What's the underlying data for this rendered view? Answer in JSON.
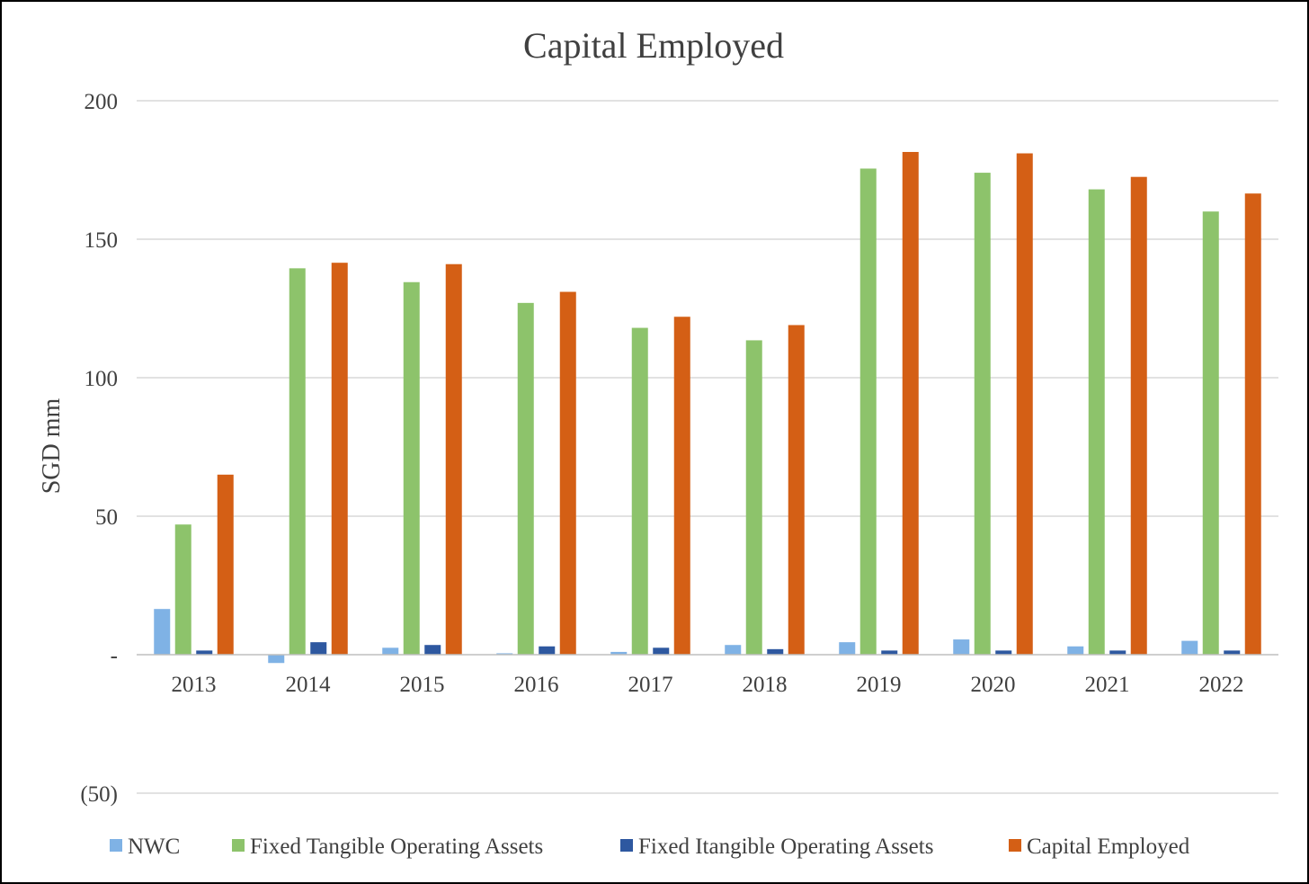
{
  "chart_data": {
    "type": "bar",
    "title": "Capital Employed",
    "xlabel": "",
    "ylabel": "SGD mm",
    "ylim": [
      -50,
      200
    ],
    "yticks": [
      {
        "value": 200,
        "label": "200"
      },
      {
        "value": 150,
        "label": "150"
      },
      {
        "value": 100,
        "label": "100"
      },
      {
        "value": 50,
        "label": "50"
      },
      {
        "value": 0,
        "label": "-"
      },
      {
        "value": -50,
        "label": "(50)"
      }
    ],
    "grid": true,
    "legend_position": "bottom",
    "categories": [
      "2013",
      "2014",
      "2015",
      "2016",
      "2017",
      "2018",
      "2019",
      "2020",
      "2021",
      "2022"
    ],
    "series": [
      {
        "name": "NWC",
        "color": "#7fb2e5",
        "values": [
          16.5,
          -3,
          2.5,
          0.5,
          1,
          3.5,
          4.5,
          5.5,
          3,
          5
        ]
      },
      {
        "name": "Fixed Tangible Operating Assets",
        "color": "#8dc36b",
        "values": [
          47,
          139.5,
          134.5,
          127,
          118,
          113.5,
          175.5,
          174,
          168,
          160
        ]
      },
      {
        "name": "Fixed Itangible Operating Assets",
        "color": "#2e58a0",
        "values": [
          1.5,
          4.5,
          3.5,
          3,
          2.5,
          2,
          1.5,
          1.5,
          1.5,
          1.5
        ]
      },
      {
        "name": "Capital Employed",
        "color": "#d45f15",
        "values": [
          65,
          141.5,
          141,
          131,
          122,
          119,
          181.5,
          181,
          172.5,
          166.5
        ]
      }
    ]
  }
}
